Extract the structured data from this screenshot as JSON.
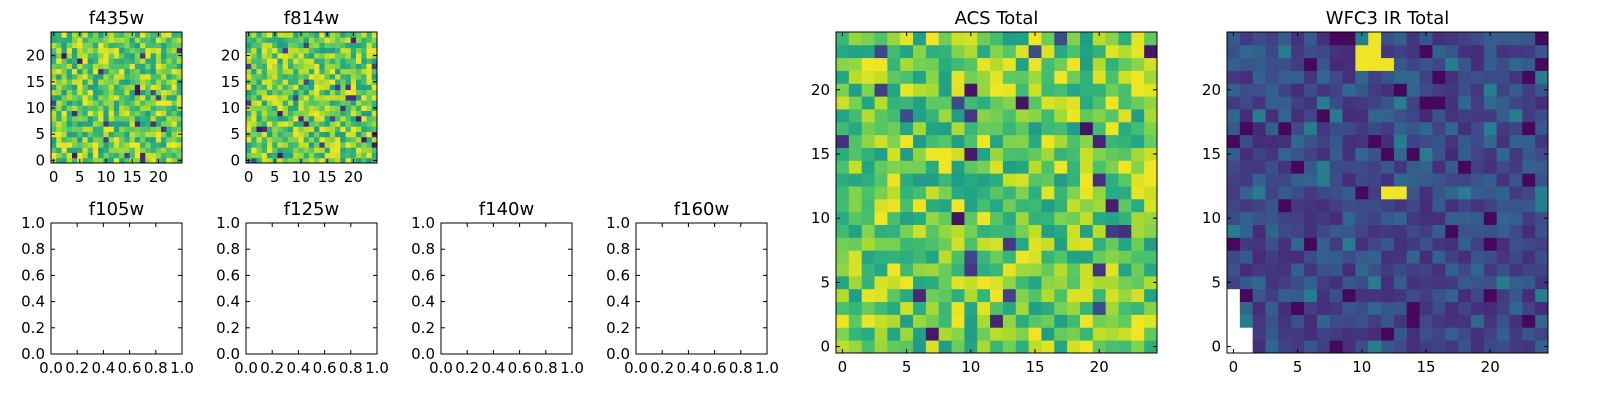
{
  "chart_data": [
    {
      "type": "heatmap",
      "title": "f435w",
      "colormap": "viridis",
      "grid": false,
      "xlim": [
        -0.5,
        24.5
      ],
      "ylim": [
        -0.5,
        24.5
      ],
      "xticks": [
        0,
        5,
        10,
        15,
        20
      ],
      "yticks": [
        0,
        5,
        10,
        15,
        20
      ],
      "xtick_labels": [
        "0",
        "5",
        "10",
        "15",
        "20"
      ],
      "ytick_labels": [
        "0",
        "5",
        "10",
        "15",
        "20"
      ]
    },
    {
      "type": "heatmap",
      "title": "f814w",
      "colormap": "viridis",
      "grid": false,
      "xlim": [
        -0.5,
        24.5
      ],
      "ylim": [
        -0.5,
        24.5
      ],
      "xticks": [
        0,
        5,
        10,
        15,
        20
      ],
      "yticks": [
        0,
        5,
        10,
        15,
        20
      ],
      "xtick_labels": [
        "0",
        "5",
        "10",
        "15",
        "20"
      ],
      "ytick_labels": [
        "0",
        "5",
        "10",
        "15",
        "20"
      ]
    },
    {
      "type": "scatter",
      "title": "f105w",
      "grid": false,
      "xlim": [
        0,
        1
      ],
      "ylim": [
        0,
        1
      ],
      "xticks": [
        0,
        0.2,
        0.4,
        0.6,
        0.8,
        1.0
      ],
      "yticks": [
        0,
        0.2,
        0.4,
        0.6,
        0.8,
        1.0
      ],
      "xtick_labels": [
        "0.0",
        "0.2",
        "0.4",
        "0.6",
        "0.8",
        "1.0"
      ],
      "ytick_labels": [
        "0.0",
        "0.2",
        "0.4",
        "0.6",
        "0.8",
        "1.0"
      ],
      "series": []
    },
    {
      "type": "scatter",
      "title": "f125w",
      "grid": false,
      "xlim": [
        0,
        1
      ],
      "ylim": [
        0,
        1
      ],
      "xticks": [
        0,
        0.2,
        0.4,
        0.6,
        0.8,
        1.0
      ],
      "yticks": [
        0,
        0.2,
        0.4,
        0.6,
        0.8,
        1.0
      ],
      "xtick_labels": [
        "0.0",
        "0.2",
        "0.4",
        "0.6",
        "0.8",
        "1.0"
      ],
      "ytick_labels": [
        "0.0",
        "0.2",
        "0.4",
        "0.6",
        "0.8",
        "1.0"
      ],
      "series": []
    },
    {
      "type": "scatter",
      "title": "f140w",
      "grid": false,
      "xlim": [
        0,
        1
      ],
      "ylim": [
        0,
        1
      ],
      "xticks": [
        0,
        0.2,
        0.4,
        0.6,
        0.8,
        1.0
      ],
      "yticks": [
        0,
        0.2,
        0.4,
        0.6,
        0.8,
        1.0
      ],
      "xtick_labels": [
        "0.0",
        "0.2",
        "0.4",
        "0.6",
        "0.8",
        "1.0"
      ],
      "ytick_labels": [
        "0.0",
        "0.2",
        "0.4",
        "0.6",
        "0.8",
        "1.0"
      ],
      "series": []
    },
    {
      "type": "scatter",
      "title": "f160w",
      "grid": false,
      "xlim": [
        0,
        1
      ],
      "ylim": [
        0,
        1
      ],
      "xticks": [
        0,
        0.2,
        0.4,
        0.6,
        0.8,
        1.0
      ],
      "yticks": [
        0,
        0.2,
        0.4,
        0.6,
        0.8,
        1.0
      ],
      "xtick_labels": [
        "0.0",
        "0.2",
        "0.4",
        "0.6",
        "0.8",
        "1.0"
      ],
      "ytick_labels": [
        "0.0",
        "0.2",
        "0.4",
        "0.6",
        "0.8",
        "1.0"
      ],
      "series": []
    },
    {
      "type": "heatmap",
      "title": "ACS Total",
      "colormap": "viridis",
      "grid": false,
      "xlim": [
        -0.5,
        24.5
      ],
      "ylim": [
        -0.5,
        24.5
      ],
      "xticks": [
        0,
        5,
        10,
        15,
        20
      ],
      "yticks": [
        0,
        5,
        10,
        15,
        20
      ],
      "xtick_labels": [
        "0",
        "5",
        "10",
        "15",
        "20"
      ],
      "ytick_labels": [
        "0",
        "5",
        "10",
        "15",
        "20"
      ]
    },
    {
      "type": "heatmap",
      "title": "WFC3 IR Total",
      "colormap": "viridis",
      "grid": false,
      "xlim": [
        -0.5,
        24.5
      ],
      "ylim": [
        -0.5,
        24.5
      ],
      "xticks": [
        0,
        5,
        10,
        15,
        20
      ],
      "yticks": [
        0,
        5,
        10,
        15,
        20
      ],
      "xtick_labels": [
        "0",
        "5",
        "10",
        "15",
        "20"
      ],
      "ytick_labels": [
        "0",
        "5",
        "10",
        "15",
        "20"
      ]
    }
  ]
}
